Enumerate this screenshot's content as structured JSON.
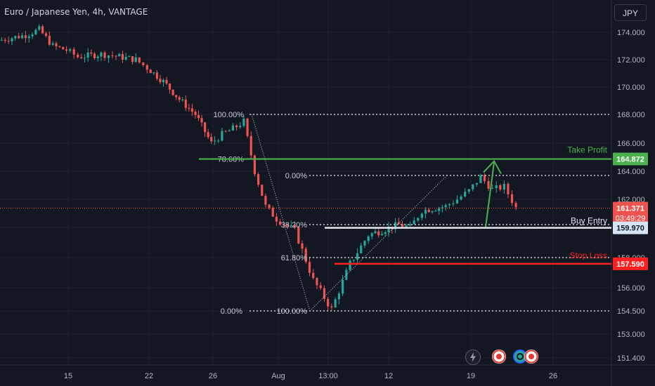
{
  "header": {
    "title": "Euro / Japanese Yen, 4h, VANTAGE",
    "currency_button": "JPY"
  },
  "colors": {
    "bg": "#131722",
    "up": "#26a69a",
    "down": "#ef5350",
    "grid": "#1e222d",
    "axis_text": "#b2b5be",
    "green": "#4caf50",
    "red": "#ff1f1f",
    "entry": "#e6e9f0",
    "fib": "#c9ccd6"
  },
  "chart_data": {
    "type": "candlestick",
    "symbol": "EURJPY",
    "timeframe": "4h",
    "y_ticks": [
      "174.000",
      "172.000",
      "170.000",
      "168.000",
      "166.000",
      "164.000",
      "162.000",
      "160.000",
      "158.000",
      "156.000",
      "154.500",
      "153.000",
      "151.400"
    ],
    "x_ticks": [
      "15",
      "22",
      "26",
      "Aug",
      "13:00",
      "12",
      "19",
      "26"
    ],
    "close_path": [
      {
        "d": "Jul 10",
        "p": 173.4
      },
      {
        "d": "Jul 12",
        "p": 173.8
      },
      {
        "d": "Jul 13",
        "p": 174.2
      },
      {
        "d": "Jul 14",
        "p": 173.0
      },
      {
        "d": "Jul 15",
        "p": 172.7
      },
      {
        "d": "Jul 16",
        "p": 172.2
      },
      {
        "d": "Jul 18",
        "p": 172.4
      },
      {
        "d": "Jul 19",
        "p": 172.3
      },
      {
        "d": "Jul 21",
        "p": 172.0
      },
      {
        "d": "Jul 22",
        "p": 171.4
      },
      {
        "d": "Jul 23",
        "p": 170.4
      },
      {
        "d": "Jul 24",
        "p": 169.1
      },
      {
        "d": "Jul 25",
        "p": 168.0
      },
      {
        "d": "Jul 26",
        "p": 166.0
      },
      {
        "d": "Jul 27",
        "p": 166.6
      },
      {
        "d": "Jul 28",
        "p": 167.0
      },
      {
        "d": "Jul 29",
        "p": 167.5
      },
      {
        "d": "Jul 30",
        "p": 164.0
      },
      {
        "d": "Jul 31",
        "p": 161.5
      },
      {
        "d": "Aug 1",
        "p": 160.6
      },
      {
        "d": "Aug 2",
        "p": 159.8
      },
      {
        "d": "Aug 3",
        "p": 156.5
      },
      {
        "d": "Aug 4",
        "p": 154.6
      },
      {
        "d": "Aug 5",
        "p": 157.6
      },
      {
        "d": "Aug 6",
        "p": 159.5
      },
      {
        "d": "Aug 8",
        "p": 160.2
      },
      {
        "d": "Aug 9",
        "p": 160.0
      },
      {
        "d": "Aug 10",
        "p": 161.2
      },
      {
        "d": "Aug 12",
        "p": 161.5
      },
      {
        "d": "Aug 13",
        "p": 162.0
      },
      {
        "d": "Aug 14",
        "p": 162.6
      },
      {
        "d": "Aug 15",
        "p": 163.6
      },
      {
        "d": "Aug 16",
        "p": 162.7
      },
      {
        "d": "Aug 17",
        "p": 162.9
      },
      {
        "d": "Aug 18",
        "p": 161.4
      }
    ],
    "fib_top": {
      "levels": [
        {
          "label": "100.00%",
          "price": 168.0
        },
        {
          "label": "78.60%",
          "price": 164.872
        }
      ]
    },
    "fib_left": {
      "levels": [
        {
          "label": "0.00%",
          "price": 163.7
        },
        {
          "label": "38.20%",
          "price": 160.2
        },
        {
          "label": "61.80%",
          "price": 158.0
        },
        {
          "label": "100.00%",
          "price": 154.5
        }
      ]
    },
    "fib_bottom_left": {
      "label": "0.00%",
      "price": 154.5
    },
    "trade": {
      "take_profit": {
        "label": "Take Profit",
        "price": "164.872"
      },
      "buy_entry": {
        "label": "Buy Entry",
        "price": "159.970"
      },
      "stop_loss": {
        "label": "Stop Loss",
        "price": "157.590"
      }
    },
    "current_price": {
      "price": "161.371",
      "countdown": "03:49:29"
    }
  }
}
